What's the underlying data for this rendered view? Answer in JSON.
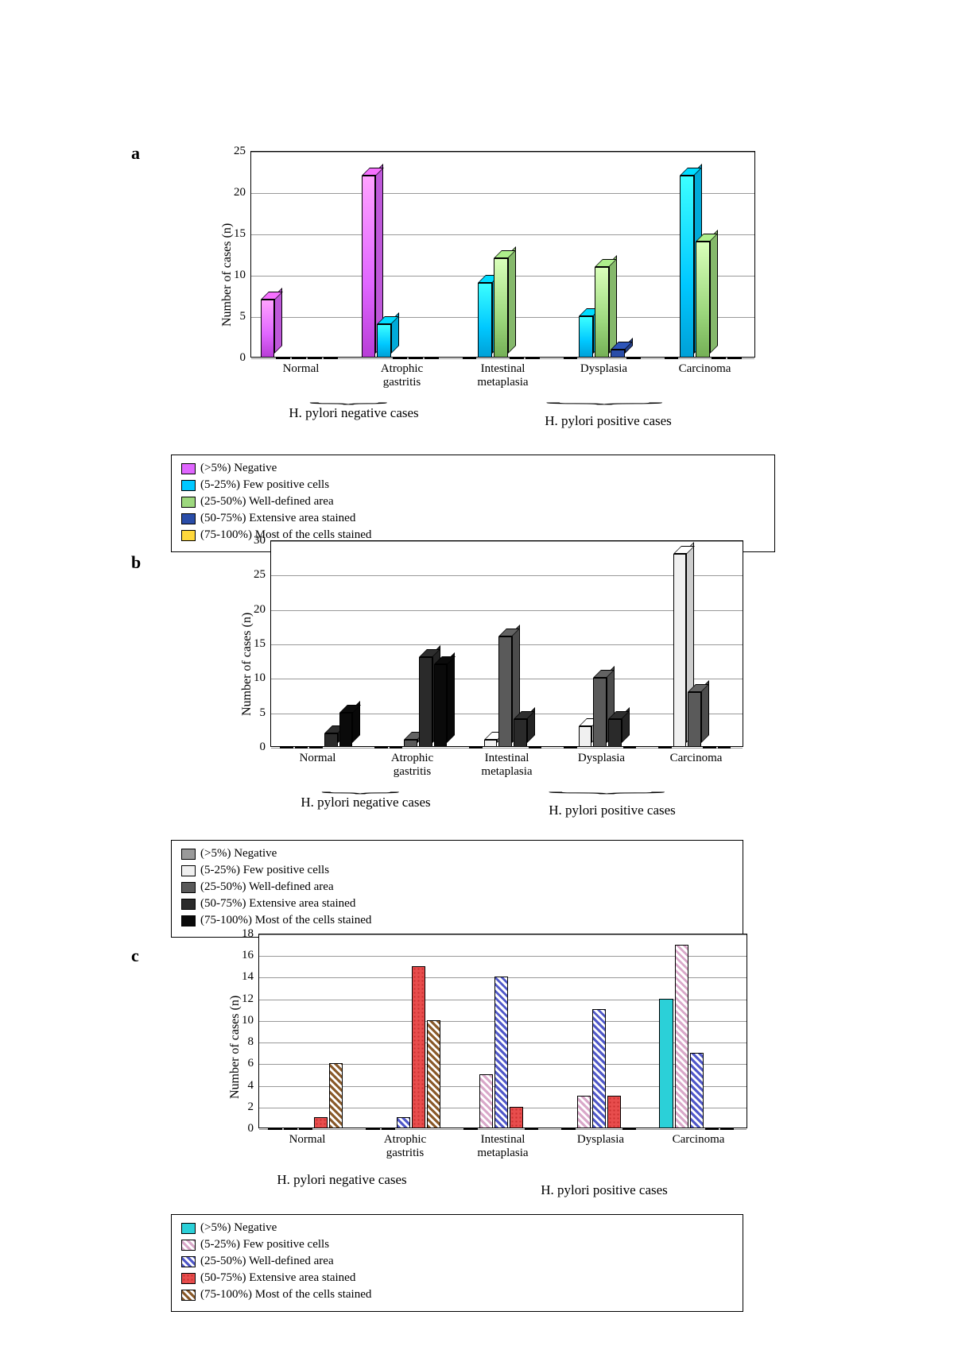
{
  "labels": {
    "a": "a",
    "b": "b",
    "c": "c",
    "ylabel": "Number of cases (n)",
    "categories": [
      "Normal",
      "Atrophic\ngastritis",
      "Intestinal\nmetaplasia",
      "Dysplasia",
      "Carcinoma"
    ],
    "group_neg": "H. pylori negative\ncases",
    "group_pos": "H. pylori positive cases",
    "series": [
      "(>5%) Negative",
      "(5-25%) Few positive cells",
      "(25-50%) Well-defined area",
      "(50-75%) Extensive area stained",
      "(75-100%) Most of the cells stained"
    ]
  },
  "chart_a": {
    "ymax": 25,
    "ytick_step": 5,
    "colors": [
      "#e066ff",
      "#00c8ff",
      "#9dd87e",
      "#2a4da8",
      "#ffd83b"
    ],
    "grad": [
      true,
      true,
      true,
      false,
      false
    ],
    "values": [
      [
        7,
        0,
        0,
        0,
        0
      ],
      [
        22,
        4,
        0,
        0,
        0
      ],
      [
        0,
        9,
        12,
        0,
        0
      ],
      [
        0,
        5,
        11,
        1,
        0
      ],
      [
        0,
        22,
        14,
        0,
        0
      ]
    ]
  },
  "chart_b": {
    "ymax": 30,
    "ytick_step": 5,
    "colors": [
      "#9a9a9a",
      "#f0f0f0",
      "#5a5a5a",
      "#2a2a2a",
      "#0a0a0a"
    ],
    "values": [
      [
        0,
        0,
        0,
        2,
        5
      ],
      [
        0,
        0,
        1,
        13,
        12
      ],
      [
        0,
        1,
        16,
        4,
        0
      ],
      [
        0,
        3,
        10,
        4,
        0
      ],
      [
        0,
        28,
        8,
        0,
        0
      ]
    ]
  },
  "chart_c": {
    "ymax": 18,
    "ytick_step": 2,
    "colors": [
      "#2bd0d8",
      "#d9a8c9",
      "#5058c8",
      "#e84d4d",
      "#8a5a2a"
    ],
    "patterns": [
      "none",
      "diag",
      "diag",
      "dots",
      "diag"
    ],
    "values": [
      [
        0,
        0,
        0,
        1,
        6
      ],
      [
        0,
        0,
        1,
        15,
        10
      ],
      [
        0,
        5,
        14,
        2,
        0
      ],
      [
        0,
        3,
        11,
        3,
        0
      ],
      [
        12,
        17,
        7,
        0,
        0
      ]
    ]
  }
}
